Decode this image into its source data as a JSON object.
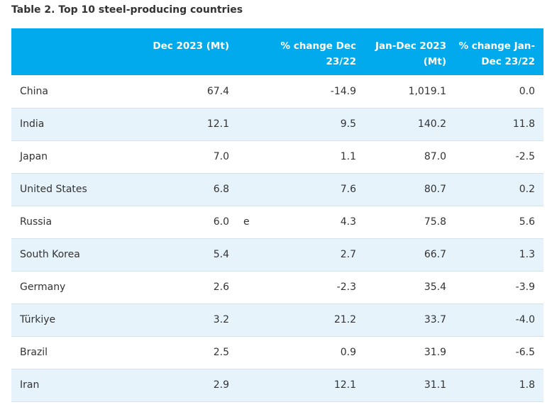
{
  "caption": "Table 2. Top 10 steel-producing countries",
  "headers": {
    "country": "",
    "dec": "Dec 2023 (Mt)",
    "note": "",
    "pct_dec": "% change Dec 23/22",
    "jan_dec": "Jan-Dec 2023 (Mt)",
    "pct_jan": "% change Jan-Dec 23/22"
  },
  "rows": [
    {
      "country": "China",
      "dec": "67.4",
      "note": "",
      "pct_dec": "-14.9",
      "jan_dec": "1,019.1",
      "pct_jan": "0.0"
    },
    {
      "country": "India",
      "dec": "12.1",
      "note": "",
      "pct_dec": "9.5",
      "jan_dec": "140.2",
      "pct_jan": "11.8"
    },
    {
      "country": "Japan",
      "dec": "7.0",
      "note": "",
      "pct_dec": "1.1",
      "jan_dec": "87.0",
      "pct_jan": "-2.5"
    },
    {
      "country": "United States",
      "dec": "6.8",
      "note": "",
      "pct_dec": "7.6",
      "jan_dec": "80.7",
      "pct_jan": "0.2"
    },
    {
      "country": "Russia",
      "dec": "6.0",
      "note": "e",
      "pct_dec": "4.3",
      "jan_dec": "75.8",
      "pct_jan": "5.6"
    },
    {
      "country": "South Korea",
      "dec": "5.4",
      "note": "",
      "pct_dec": "2.7",
      "jan_dec": "66.7",
      "pct_jan": "1.3"
    },
    {
      "country": "Germany",
      "dec": "2.6",
      "note": "",
      "pct_dec": "-2.3",
      "jan_dec": "35.4",
      "pct_jan": "-3.9"
    },
    {
      "country": "Türkiye",
      "dec": "3.2",
      "note": "",
      "pct_dec": "21.2",
      "jan_dec": "33.7",
      "pct_jan": "-4.0"
    },
    {
      "country": "Brazil",
      "dec": "2.5",
      "note": "",
      "pct_dec": "0.9",
      "jan_dec": "31.9",
      "pct_jan": "-6.5"
    },
    {
      "country": "Iran",
      "dec": "2.9",
      "note": "",
      "pct_dec": "12.1",
      "jan_dec": "31.1",
      "pct_jan": "1.8"
    }
  ],
  "colors": {
    "header_bg": "#00aaec",
    "header_text": "#ffffff",
    "alt_row_bg": "#e6f3fb",
    "row_border": "#d6e1e8"
  }
}
